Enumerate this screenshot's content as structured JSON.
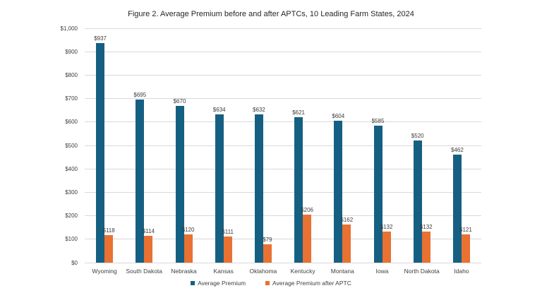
{
  "chart_data": {
    "type": "bar",
    "title": "Figure 2. Average Premium before and after APTCs, 10 Leading Farm States, 2024",
    "categories": [
      "Wyoming",
      "South Dakota",
      "Nebraska",
      "Kansas",
      "Oklahoma",
      "Kentucky",
      "Montana",
      "Iowa",
      "North Dakota",
      "Idaho"
    ],
    "series": [
      {
        "name": "Average Premium",
        "color": "#156082",
        "values": [
          937,
          695,
          670,
          634,
          632,
          621,
          604,
          585,
          520,
          462
        ],
        "labels": [
          "$937",
          "$695",
          "$670",
          "$634",
          "$632",
          "$621",
          "$604",
          "$585",
          "$520",
          "$462"
        ]
      },
      {
        "name": "Average Premium after APTC",
        "color": "#E97132",
        "values": [
          118,
          114,
          120,
          111,
          79,
          206,
          162,
          132,
          132,
          121
        ],
        "labels": [
          "$118",
          "$114",
          "$120",
          "$111",
          "$79",
          "$206",
          "$162",
          "$132",
          "$132",
          "$121"
        ]
      }
    ],
    "xlabel": "",
    "ylabel": "",
    "ylim": [
      0,
      1000
    ],
    "ytick_interval": 100,
    "ytick_labels": [
      "$0",
      "$100",
      "$200",
      "$300",
      "$400",
      "$500",
      "$600",
      "$700",
      "$800",
      "$900",
      "$1,000"
    ],
    "grid": true,
    "legend_position": "bottom",
    "colors": {
      "gridline": "#d9d9d9",
      "background": "#ffffff",
      "text": "#404040"
    }
  }
}
